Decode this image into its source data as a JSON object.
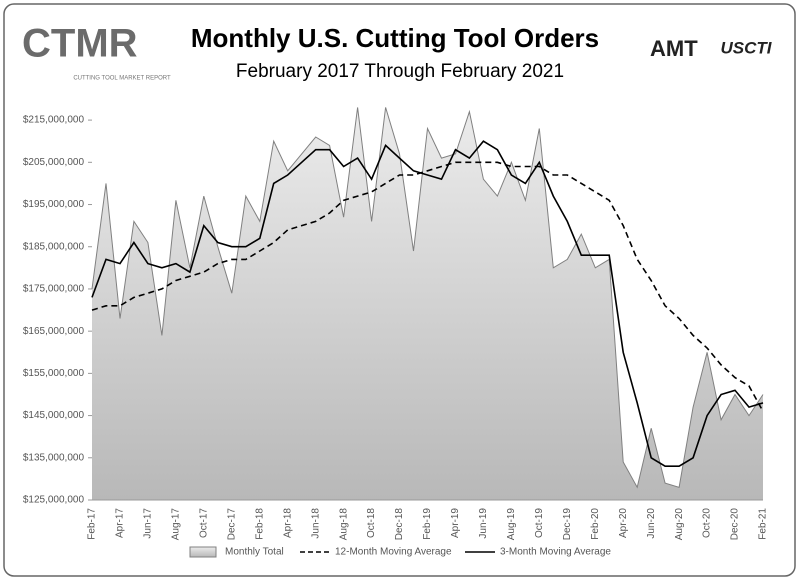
{
  "chart_data": {
    "type": "line",
    "title": "Monthly U.S. Cutting Tool Orders",
    "subtitle": "February 2017 Through February 2021",
    "logos": {
      "left": "CTMR",
      "left_caption": "CUTTING TOOL MARKET REPORT",
      "right_1": "AMT",
      "right_2": "USCTI"
    },
    "categories": [
      "Feb-17",
      null,
      "Apr-17",
      null,
      "Jun-17",
      null,
      "Aug-17",
      null,
      "Oct-17",
      null,
      "Dec-17",
      null,
      "Feb-18",
      null,
      "Apr-18",
      null,
      "Jun-18",
      null,
      "Aug-18",
      null,
      "Oct-18",
      null,
      "Dec-18",
      null,
      "Feb-19",
      null,
      "Apr-19",
      null,
      "Jun-19",
      null,
      "Aug-19",
      null,
      "Oct-19",
      null,
      "Dec-19",
      null,
      "Feb-20",
      null,
      "Apr-20",
      null,
      "Jun-20",
      null,
      "Aug-20",
      null,
      "Oct-20",
      null,
      "Dec-20",
      null,
      "Feb-21"
    ],
    "series": [
      {
        "name": "Monthly Total",
        "color": "#808080",
        "style": "area",
        "values": [
          175000000,
          200000000,
          168000000,
          191000000,
          186000000,
          164000000,
          196000000,
          180000000,
          197000000,
          185000000,
          174000000,
          197000000,
          191000000,
          210000000,
          203000000,
          207000000,
          211000000,
          209000000,
          192000000,
          218000000,
          191000000,
          218000000,
          207000000,
          184000000,
          213000000,
          206000000,
          207000000,
          217000000,
          201000000,
          197000000,
          205000000,
          196000000,
          213000000,
          180000000,
          182000000,
          188000000,
          180000000,
          182000000,
          134000000,
          128000000,
          142000000,
          129000000,
          128000000,
          147000000,
          160000000,
          144000000,
          150000000,
          145000000,
          150000000
        ]
      },
      {
        "name": "12-Month Moving Average",
        "color": "#000000",
        "style": "dashed",
        "values": [
          170000000,
          171000000,
          171000000,
          173000000,
          174000000,
          175000000,
          177000000,
          178000000,
          179000000,
          181000000,
          182000000,
          182000000,
          184000000,
          186000000,
          189000000,
          190000000,
          191000000,
          193000000,
          196000000,
          197000000,
          198000000,
          200000000,
          202000000,
          202000000,
          203000000,
          204000000,
          205000000,
          205000000,
          205000000,
          205000000,
          204000000,
          204000000,
          204000000,
          202000000,
          202000000,
          200000000,
          198000000,
          196000000,
          190000000,
          182000000,
          177000000,
          171000000,
          168000000,
          164000000,
          161000000,
          157000000,
          154000000,
          152000000,
          146000000
        ]
      },
      {
        "name": "3-Month Moving Average",
        "color": "#000000",
        "style": "solid",
        "values": [
          173000000,
          182000000,
          181000000,
          186000000,
          181000000,
          180000000,
          181000000,
          179000000,
          190000000,
          186000000,
          185000000,
          185000000,
          187000000,
          200000000,
          202000000,
          205000000,
          208000000,
          208000000,
          204000000,
          206000000,
          201000000,
          209000000,
          206000000,
          203000000,
          202000000,
          201000000,
          208000000,
          206000000,
          210000000,
          208000000,
          202000000,
          200000000,
          205000000,
          197000000,
          191000000,
          183000000,
          183000000,
          183000000,
          160000000,
          148000000,
          135000000,
          133000000,
          133000000,
          135000000,
          145000000,
          150000000,
          151000000,
          147000000,
          148000000
        ]
      }
    ],
    "ylim": [
      125000000,
      220000000
    ],
    "yticks": [
      {
        "value": 125000000,
        "label": "$125,000,000"
      },
      {
        "value": 135000000,
        "label": "$135,000,000"
      },
      {
        "value": 145000000,
        "label": "$145,000,000"
      },
      {
        "value": 155000000,
        "label": "$155,000,000"
      },
      {
        "value": 165000000,
        "label": "$165,000,000"
      },
      {
        "value": 175000000,
        "label": "$175,000,000"
      },
      {
        "value": 185000000,
        "label": "$185,000,000"
      },
      {
        "value": 195000000,
        "label": "$195,000,000"
      },
      {
        "value": 205000000,
        "label": "$205,000,000"
      },
      {
        "value": 215000000,
        "label": "$215,000,000"
      }
    ],
    "legend": "bottom"
  }
}
